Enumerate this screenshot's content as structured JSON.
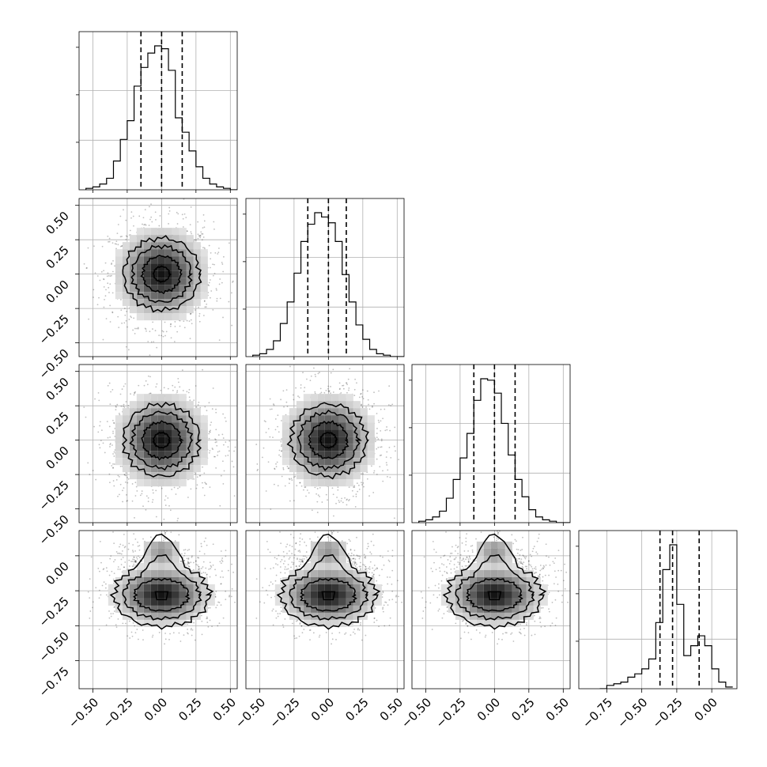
{
  "figure": {
    "type": "corner_plot",
    "n_params": 4
  },
  "chart_data": {
    "type": "corner",
    "parameters": [
      {
        "index": 0,
        "range": [
          -0.6,
          0.55
        ],
        "ticks": [
          -0.5,
          -0.25,
          0.0,
          0.25,
          0.5
        ],
        "tick_labels": [
          "−0.50",
          "−0.25",
          "0.00",
          "0.25",
          "0.50"
        ],
        "quantiles": [
          -0.15,
          0.0,
          0.15
        ],
        "hist_bin_edges": [
          -0.55,
          -0.5,
          -0.45,
          -0.4,
          -0.35,
          -0.3,
          -0.25,
          -0.2,
          -0.15,
          -0.1,
          -0.05,
          0.0,
          0.05,
          0.1,
          0.15,
          0.2,
          0.25,
          0.3,
          0.35,
          0.4,
          0.45,
          0.5,
          0.55
        ],
        "hist_values": [
          0.01,
          0.02,
          0.04,
          0.08,
          0.2,
          0.35,
          0.48,
          0.72,
          0.85,
          0.95,
          1.0,
          0.98,
          0.83,
          0.5,
          0.4,
          0.27,
          0.16,
          0.08,
          0.04,
          0.02,
          0.01,
          0.0
        ]
      },
      {
        "index": 1,
        "range": [
          -0.6,
          0.55
        ],
        "ticks": [
          -0.5,
          -0.25,
          0.0,
          0.25,
          0.5
        ],
        "tick_labels": [
          "−0.50",
          "−0.25",
          "0.00",
          "0.25",
          "0.50"
        ],
        "quantiles": [
          -0.15,
          0.0,
          0.13
        ],
        "hist_bin_edges": [
          -0.55,
          -0.5,
          -0.45,
          -0.4,
          -0.35,
          -0.3,
          -0.25,
          -0.2,
          -0.15,
          -0.1,
          -0.05,
          0.0,
          0.05,
          0.1,
          0.15,
          0.2,
          0.25,
          0.3,
          0.35,
          0.4,
          0.45,
          0.5,
          0.55
        ],
        "hist_values": [
          0.01,
          0.02,
          0.05,
          0.11,
          0.23,
          0.38,
          0.58,
          0.8,
          0.92,
          1.0,
          0.97,
          0.93,
          0.8,
          0.57,
          0.38,
          0.22,
          0.12,
          0.05,
          0.02,
          0.01,
          0.0,
          0.0
        ]
      },
      {
        "index": 2,
        "range": [
          -0.6,
          0.55
        ],
        "ticks": [
          -0.5,
          -0.25,
          0.0,
          0.25,
          0.5
        ],
        "tick_labels": [
          "−0.50",
          "−0.25",
          "0.00",
          "0.25",
          "0.50"
        ],
        "quantiles": [
          -0.15,
          0.0,
          0.15
        ],
        "hist_bin_edges": [
          -0.55,
          -0.5,
          -0.45,
          -0.4,
          -0.35,
          -0.3,
          -0.25,
          -0.2,
          -0.15,
          -0.1,
          -0.05,
          0.0,
          0.05,
          0.1,
          0.15,
          0.2,
          0.25,
          0.3,
          0.35,
          0.4,
          0.45,
          0.5,
          0.55
        ],
        "hist_values": [
          0.01,
          0.02,
          0.04,
          0.08,
          0.17,
          0.3,
          0.45,
          0.62,
          0.85,
          1.0,
          0.99,
          0.9,
          0.69,
          0.47,
          0.3,
          0.18,
          0.09,
          0.04,
          0.02,
          0.01,
          0.0,
          0.0
        ]
      },
      {
        "index": 3,
        "range": [
          -0.95,
          0.18
        ],
        "ticks": [
          -0.75,
          -0.5,
          -0.25,
          0.0
        ],
        "tick_labels": [
          "−0.75",
          "−0.50",
          "−0.25",
          "0.00"
        ],
        "quantiles": [
          -0.37,
          -0.28,
          -0.09
        ],
        "hist_bin_edges": [
          -0.8,
          -0.75,
          -0.7,
          -0.65,
          -0.6,
          -0.55,
          -0.5,
          -0.45,
          -0.4,
          -0.35,
          -0.3,
          -0.25,
          -0.2,
          -0.15,
          -0.1,
          -0.05,
          0.0,
          0.05,
          0.1,
          0.15
        ],
        "hist_values": [
          0.0,
          0.02,
          0.03,
          0.04,
          0.07,
          0.09,
          0.12,
          0.18,
          0.4,
          0.72,
          0.87,
          0.51,
          0.2,
          0.26,
          0.32,
          0.26,
          0.12,
          0.04,
          0.01
        ]
      }
    ],
    "panels_2d": [
      {
        "row": 1,
        "col": 0,
        "center": [
          0.0,
          0.0
        ],
        "sigma": [
          0.15,
          0.15
        ]
      },
      {
        "row": 2,
        "col": 0,
        "center": [
          0.0,
          0.0
        ],
        "sigma": [
          0.15,
          0.15
        ]
      },
      {
        "row": 2,
        "col": 1,
        "center": [
          0.0,
          0.0
        ],
        "sigma": [
          0.15,
          0.15
        ]
      },
      {
        "row": 3,
        "col": 0,
        "center": [
          0.0,
          -0.28
        ],
        "sigma": [
          0.15,
          0.1
        ],
        "bimodal": true
      },
      {
        "row": 3,
        "col": 1,
        "center": [
          0.0,
          -0.28
        ],
        "sigma": [
          0.15,
          0.1
        ],
        "bimodal": true
      },
      {
        "row": 3,
        "col": 2,
        "center": [
          0.0,
          -0.28
        ],
        "sigma": [
          0.15,
          0.1
        ],
        "bimodal": true
      }
    ],
    "grid": true,
    "xlabel": "",
    "ylabel": "",
    "title": ""
  }
}
